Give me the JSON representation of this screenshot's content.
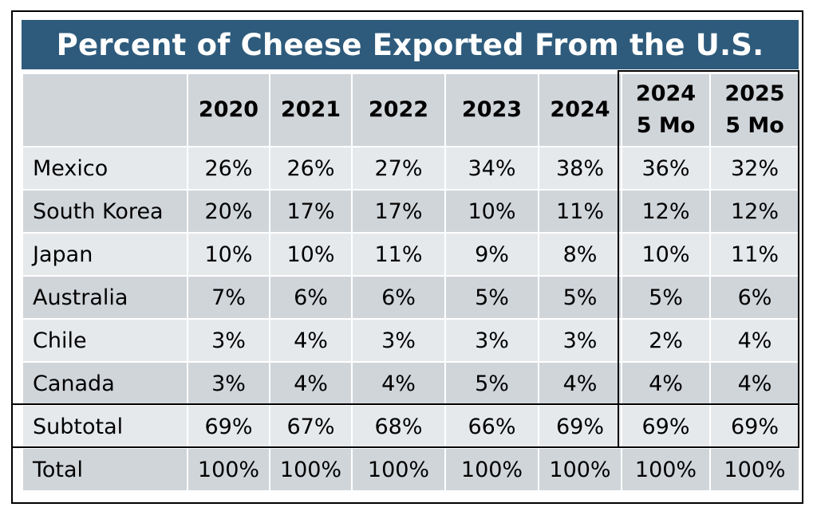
{
  "chart_data": {
    "type": "table",
    "title": "Percent of Cheese Exported From the U.S.",
    "columns": [
      {
        "line1": "2020",
        "line2": ""
      },
      {
        "line1": "2021",
        "line2": ""
      },
      {
        "line1": "2022",
        "line2": ""
      },
      {
        "line1": "2023",
        "line2": ""
      },
      {
        "line1": "2024",
        "line2": ""
      },
      {
        "line1": "2024",
        "line2": "5 Mo"
      },
      {
        "line1": "2025",
        "line2": "5 Mo"
      }
    ],
    "rows": [
      {
        "label": "Mexico",
        "values": [
          "26%",
          "26%",
          "27%",
          "34%",
          "38%",
          "36%",
          "32%"
        ]
      },
      {
        "label": "South Korea",
        "values": [
          "20%",
          "17%",
          "17%",
          "10%",
          "11%",
          "12%",
          "12%"
        ]
      },
      {
        "label": "Japan",
        "values": [
          "10%",
          "10%",
          "11%",
          "9%",
          "8%",
          "10%",
          "11%"
        ]
      },
      {
        "label": "Australia",
        "values": [
          "7%",
          "6%",
          "6%",
          "5%",
          "5%",
          "5%",
          "6%"
        ]
      },
      {
        "label": "Chile",
        "values": [
          "3%",
          "4%",
          "3%",
          "3%",
          "3%",
          "2%",
          "4%"
        ]
      },
      {
        "label": "Canada",
        "values": [
          "3%",
          "4%",
          "4%",
          "5%",
          "4%",
          "4%",
          "4%"
        ]
      },
      {
        "label": "Subtotal",
        "values": [
          "69%",
          "67%",
          "68%",
          "66%",
          "69%",
          "69%",
          "69%"
        ]
      },
      {
        "label": "Total",
        "values": [
          "100%",
          "100%",
          "100%",
          "100%",
          "100%",
          "100%",
          "100%"
        ]
      }
    ]
  },
  "colors": {
    "title_bg": "#2e5b7c",
    "title_text": "#ffffff",
    "cell_dark": "#d0d5da",
    "cell_light": "#e6e9ec"
  }
}
